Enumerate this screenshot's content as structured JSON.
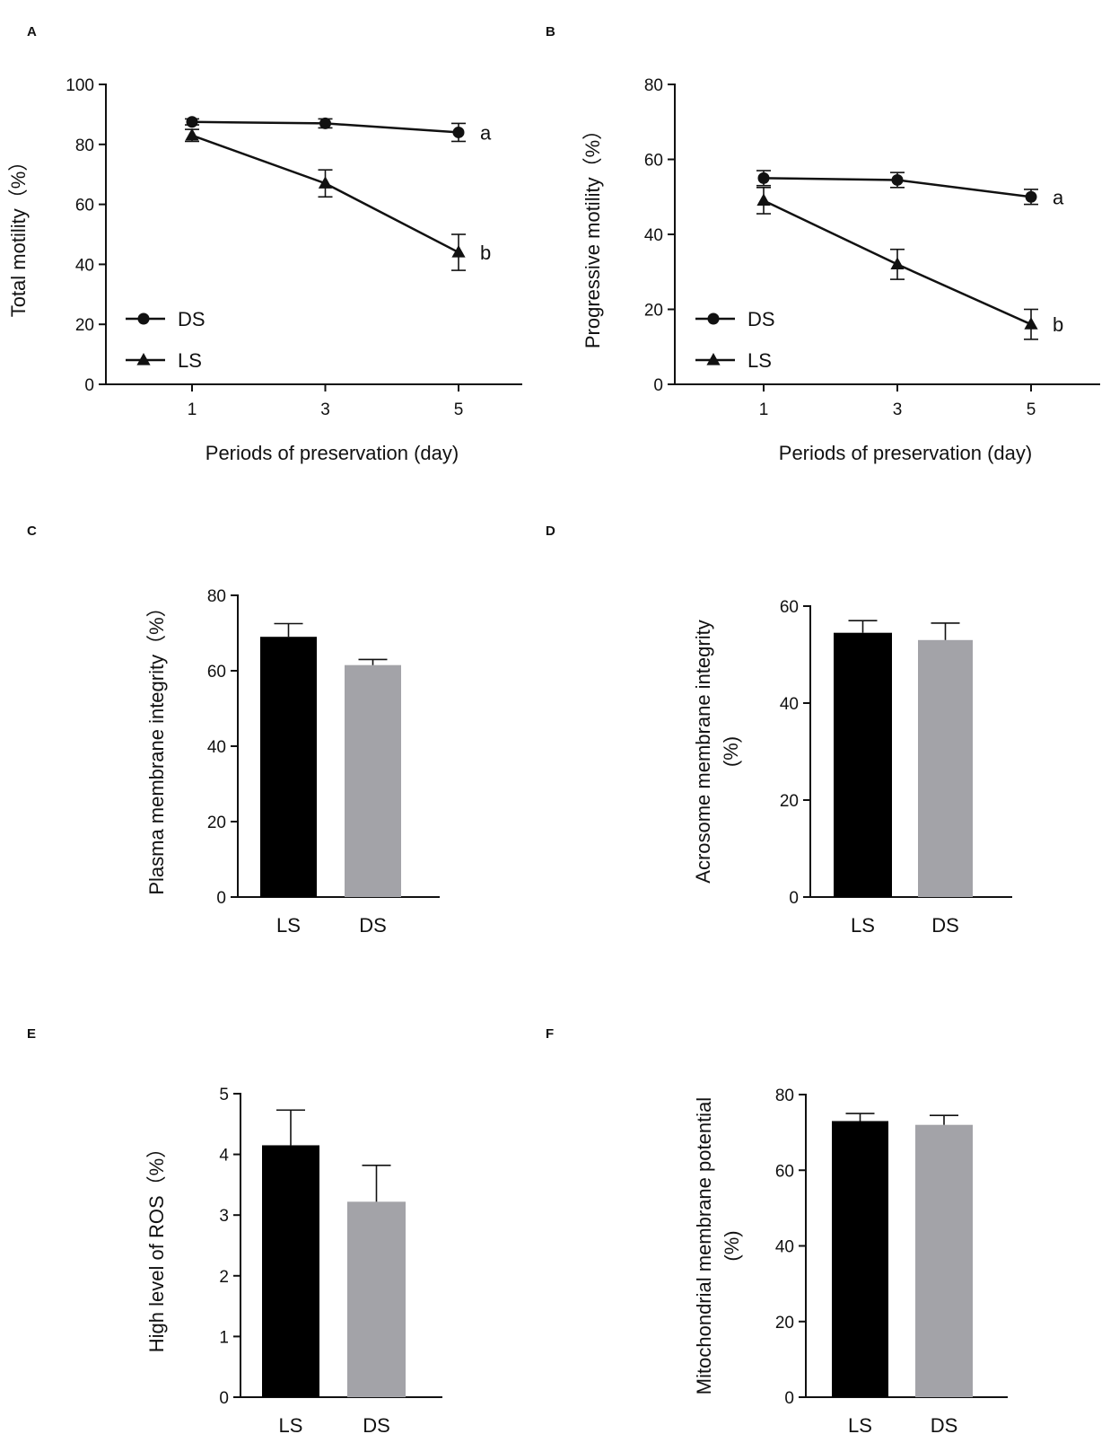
{
  "chart_data": [
    {
      "panel": "A",
      "type": "line",
      "x": [
        1,
        3,
        5
      ],
      "xlabel": "Periods of preservation (day)",
      "ylabel": "Total motility（%）",
      "ylim": [
        0,
        100
      ],
      "yticks": [
        0,
        20,
        40,
        60,
        80,
        100
      ],
      "xticks": [
        1,
        3,
        5
      ],
      "legend": "bottom-left",
      "series": [
        {
          "name": "DS",
          "marker": "circle",
          "values": [
            87.5,
            87,
            84
          ],
          "errors": [
            1,
            1.5,
            3
          ],
          "end_label": "a"
        },
        {
          "name": "LS",
          "marker": "triangle",
          "values": [
            83,
            67,
            44
          ],
          "errors": [
            2,
            4.5,
            6
          ],
          "end_label": "b"
        }
      ]
    },
    {
      "panel": "B",
      "type": "line",
      "x": [
        1,
        3,
        5
      ],
      "xlabel": "Periods of preservation (day)",
      "ylabel": "Progressive motility（%）",
      "ylim": [
        0,
        80
      ],
      "yticks": [
        0,
        20,
        40,
        60,
        80
      ],
      "xticks": [
        1,
        3,
        5
      ],
      "legend": "bottom-left",
      "series": [
        {
          "name": "DS",
          "marker": "circle",
          "values": [
            55,
            54.5,
            50
          ],
          "errors": [
            2,
            2,
            2
          ],
          "end_label": "a"
        },
        {
          "name": "LS",
          "marker": "triangle",
          "values": [
            49,
            32,
            16
          ],
          "errors": [
            3.5,
            4,
            4
          ],
          "end_label": "b"
        }
      ]
    },
    {
      "panel": "C",
      "type": "bar",
      "categories": [
        "LS",
        "DS"
      ],
      "values": [
        69,
        61.5
      ],
      "errors": [
        3.5,
        1.5
      ],
      "colors": [
        "#000000",
        "#a3a3a8"
      ],
      "ylabel": [
        "Plasma membrane integrity（%）"
      ],
      "ylim": [
        0,
        80
      ],
      "yticks": [
        0,
        20,
        40,
        60,
        80
      ]
    },
    {
      "panel": "D",
      "type": "bar",
      "categories": [
        "LS",
        "DS"
      ],
      "values": [
        54.5,
        53
      ],
      "errors": [
        2.5,
        3.5
      ],
      "colors": [
        "#000000",
        "#a3a3a8"
      ],
      "ylabel": [
        "Acrosome membrane integrity",
        "(%)"
      ],
      "ylim": [
        0,
        60
      ],
      "yticks": [
        0,
        20,
        40,
        60
      ]
    },
    {
      "panel": "E",
      "type": "bar",
      "categories": [
        "LS",
        "DS"
      ],
      "values": [
        4.15,
        3.22
      ],
      "errors": [
        0.58,
        0.6
      ],
      "colors": [
        "#000000",
        "#a3a3a8"
      ],
      "ylabel": [
        "High level of ROS（%）"
      ],
      "ylim": [
        0,
        5
      ],
      "yticks": [
        0,
        1,
        2,
        3,
        4,
        5
      ]
    },
    {
      "panel": "F",
      "type": "bar",
      "categories": [
        "LS",
        "DS"
      ],
      "values": [
        73,
        72
      ],
      "errors": [
        2,
        2.5
      ],
      "colors": [
        "#000000",
        "#a3a3a8"
      ],
      "ylabel": [
        "Mitochondrial membrane potential",
        "(%)"
      ],
      "ylim": [
        0,
        80
      ],
      "yticks": [
        0,
        20,
        40,
        60,
        80
      ]
    }
  ]
}
